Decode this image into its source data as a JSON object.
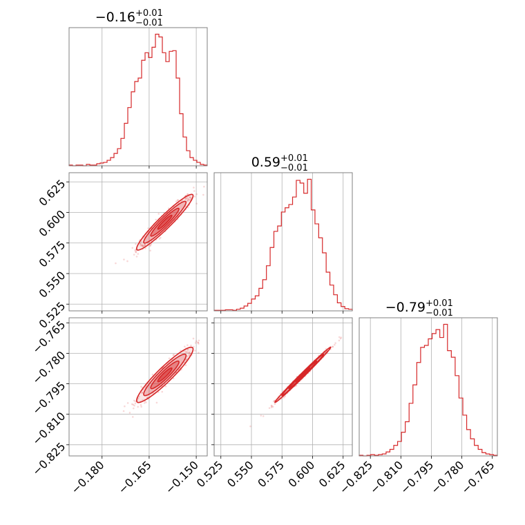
{
  "chart_data": {
    "type": "corner",
    "color": "#d62728",
    "grid": true,
    "parameters": [
      {
        "title_value": "−0.16",
        "title_plus": "+0.01",
        "title_minus": "−0.01",
        "range": [
          -0.1905,
          -0.1465
        ],
        "ticks": [
          -0.18,
          -0.165,
          -0.15
        ],
        "tick_labels": [
          "−0.180",
          "−0.165",
          "−0.150"
        ],
        "hist": [
          1,
          0,
          1,
          1,
          0,
          2,
          1,
          1,
          3,
          4,
          5,
          8,
          12,
          18,
          25,
          40,
          62,
          85,
          108,
          123,
          128,
          154,
          165,
          158,
          173,
          192,
          188,
          165,
          152,
          167,
          168,
          128,
          76,
          42,
          22,
          12,
          8,
          5,
          2,
          1
        ],
        "hist_max": 192
      },
      {
        "title_value": "0.59",
        "title_plus": "+0.01",
        "title_minus": "−0.01",
        "range": [
          0.5195,
          0.6325
        ],
        "ticks": [
          0.525,
          0.55,
          0.575,
          0.6,
          0.625
        ],
        "tick_labels": [
          "0.525",
          "0.550",
          "0.575",
          "0.600",
          "0.625"
        ],
        "hist": [
          1,
          1,
          1,
          2,
          2,
          1,
          3,
          5,
          9,
          14,
          22,
          28,
          42,
          58,
          84,
          118,
          148,
          158,
          184,
          192,
          198,
          212,
          243,
          238,
          219,
          245,
          188,
          162,
          136,
          108,
          72,
          48,
          30,
          15,
          8,
          4,
          3
        ],
        "hist_max": 245
      },
      {
        "title_value": "−0.79",
        "title_plus": "+0.01",
        "title_minus": "−0.01",
        "range": [
          -0.8305,
          -0.7625
        ],
        "ticks": [
          -0.825,
          -0.81,
          -0.795,
          -0.78,
          -0.765
        ],
        "tick_labels": [
          "−0.825",
          "−0.810",
          "−0.795",
          "−0.780",
          "−0.765"
        ],
        "hist": [
          1,
          0,
          1,
          2,
          1,
          2,
          3,
          6,
          10,
          16,
          22,
          36,
          52,
          80,
          108,
          142,
          165,
          168,
          178,
          186,
          192,
          180,
          200,
          160,
          150,
          122,
          88,
          62,
          40,
          26,
          16,
          10,
          5,
          3,
          2,
          1
        ],
        "hist_max": 200
      }
    ],
    "pairs": [
      {
        "x_param": 0,
        "y_param": 1,
        "center": [
          -0.16,
          0.592
        ],
        "sd": [
          0.0045,
          0.0114
        ],
        "corr": 0.95,
        "levels_sigma": [
          0.5,
          1.0,
          1.5,
          2.0
        ]
      },
      {
        "x_param": 0,
        "y_param": 2,
        "center": [
          -0.16,
          -0.7906
        ],
        "sd": [
          0.0045,
          0.0068
        ],
        "corr": 0.93,
        "levels_sigma": [
          0.5,
          1.0,
          1.5,
          2.0
        ]
      },
      {
        "x_param": 1,
        "y_param": 2,
        "center": [
          0.592,
          -0.7906
        ],
        "sd": [
          0.0114,
          0.0068
        ],
        "corr": 0.995,
        "levels_sigma": [
          0.5,
          1.0,
          1.5,
          2.0
        ]
      }
    ]
  }
}
